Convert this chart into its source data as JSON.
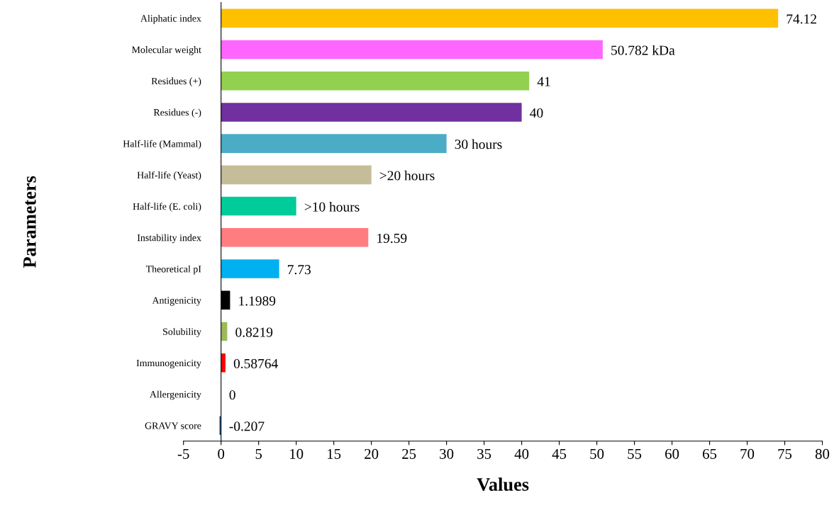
{
  "chart_data": {
    "type": "bar",
    "orientation": "horizontal",
    "xlabel": "Values",
    "ylabel": "Parameters",
    "categories": [
      "Aliphatic index",
      "Molecular weight",
      "Residues (+)",
      "Residues (-)",
      "Half-life (Mammal)",
      "Half-life (Yeast)",
      "Half-life (E. coli)",
      "Instability index",
      "Theoretical pI",
      "Antigenicity",
      "Solubility",
      "Immunogenicity",
      "Allergenicity",
      "GRAVY score"
    ],
    "values": [
      74.12,
      50.782,
      41,
      40,
      30,
      20,
      10,
      19.59,
      7.73,
      1.1989,
      0.8219,
      0.58764,
      0,
      -0.207
    ],
    "value_labels": [
      "74.12",
      "50.782 kDa",
      "41",
      "40",
      "30 hours",
      ">20 hours",
      ">10 hours",
      "19.59",
      "7.73",
      "1.1989",
      "0.8219",
      "0.58764",
      "0",
      "-0.207"
    ],
    "colors": [
      "#ffc000",
      "#ff66ff",
      "#92d050",
      "#7030a0",
      "#4bacc6",
      "#c4bd97",
      "#00cc99",
      "#ff7c80",
      "#00b0f0",
      "#000000",
      "#9bbb59",
      "#ff0000",
      "#2f5597",
      "#1f4e79"
    ],
    "xlim": [
      -5,
      80
    ],
    "xticks": [
      -5,
      0,
      5,
      10,
      15,
      20,
      25,
      30,
      35,
      40,
      45,
      50,
      55,
      60,
      65,
      70,
      75,
      80
    ],
    "grid": false,
    "legend": false
  }
}
